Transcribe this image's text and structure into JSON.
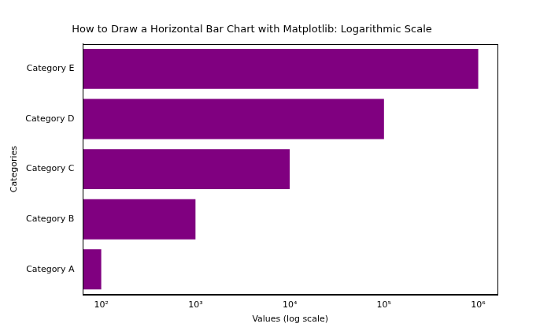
{
  "chart_data": {
    "type": "bar",
    "title": "How to Draw a Horizontal Bar Chart with Matplotlib: Logarithmic Scale",
    "x_label": "Values (log scale)",
    "y_label": "Categories",
    "categories": [
      "Category A",
      "Category B",
      "Category C",
      "Category D",
      "Category E"
    ],
    "values": [
      100,
      1000,
      10000,
      100000,
      1000000
    ],
    "color": "#800080",
    "orientation": "horizontal",
    "log": "x",
    "xlim": [
      64,
      1600000
    ],
    "xticks": [
      {
        "value": 100,
        "label": "10²"
      },
      {
        "value": 1000,
        "label": "10³"
      },
      {
        "value": 10000,
        "label": "10⁴"
      },
      {
        "value": 100000,
        "label": "10⁵"
      },
      {
        "value": 1000000,
        "label": "10⁶"
      }
    ],
    "grid": false
  }
}
